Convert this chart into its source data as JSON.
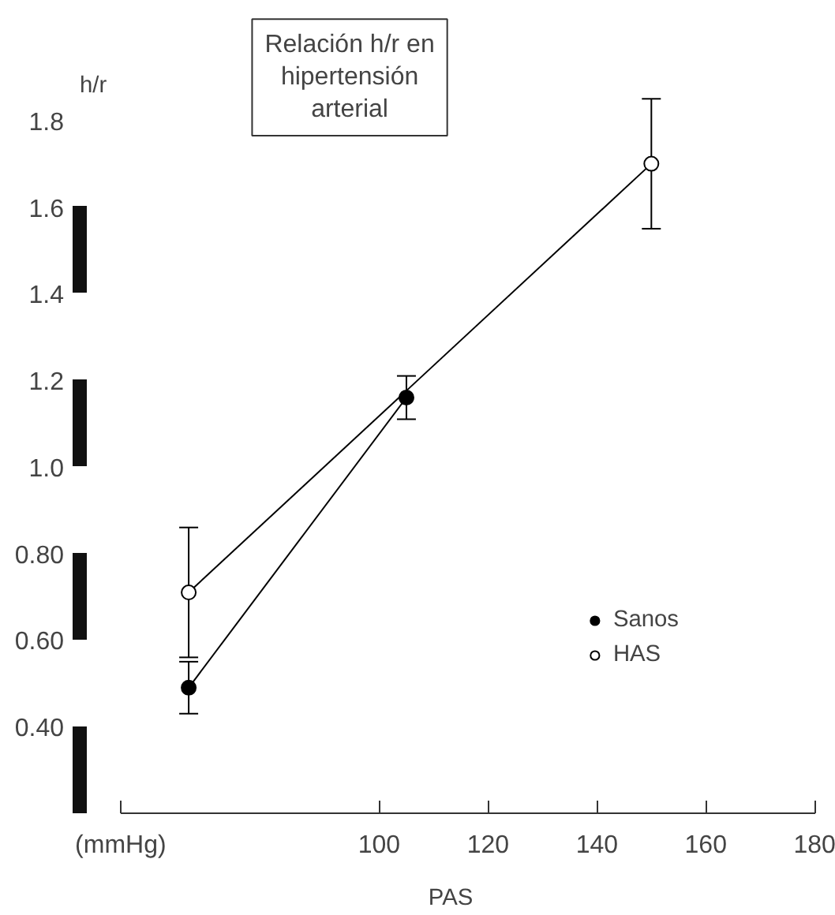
{
  "chart_data": {
    "type": "line",
    "title": "Relación h/r en\nhipertensión\narterial",
    "xlabel": "PAS",
    "ylabel": "h/r",
    "xlim": [
      52.5,
      180
    ],
    "xticks": [
      {
        "value": 52.5,
        "label": "(mmHg)"
      },
      100,
      120,
      140,
      160,
      180
    ],
    "ylim": [
      0.2,
      1.8
    ],
    "yticks": [
      {
        "value": 0.4,
        "label": "0.40"
      },
      {
        "value": 0.6,
        "label": "0.60"
      },
      {
        "value": 0.8,
        "label": "0.80"
      },
      {
        "value": 1.0,
        "label": "1.0"
      },
      {
        "value": 1.2,
        "label": "1.2"
      },
      {
        "value": 1.4,
        "label": "1.4"
      },
      {
        "value": 1.6,
        "label": "1.6"
      },
      {
        "value": 1.8,
        "label": "1.8"
      }
    ],
    "marker": "circle",
    "line_style": "solid",
    "grid": false,
    "legend": "bottom right",
    "series": [
      {
        "name": "Sanos",
        "color": "#000000",
        "x": [
          65,
          105
        ],
        "values": [
          0.49,
          1.16
        ],
        "errors": [
          [
            0.43,
            0.55
          ],
          [
            1.11,
            1.21
          ]
        ]
      },
      {
        "name": "HAS",
        "color": "#000000",
        "marker": "circle_open",
        "x": [
          65,
          150
        ],
        "values": [
          0.71,
          1.7
        ],
        "errors": [
          [
            0.56,
            0.86
          ],
          [
            1.55,
            1.85
          ]
        ]
      }
    ]
  }
}
